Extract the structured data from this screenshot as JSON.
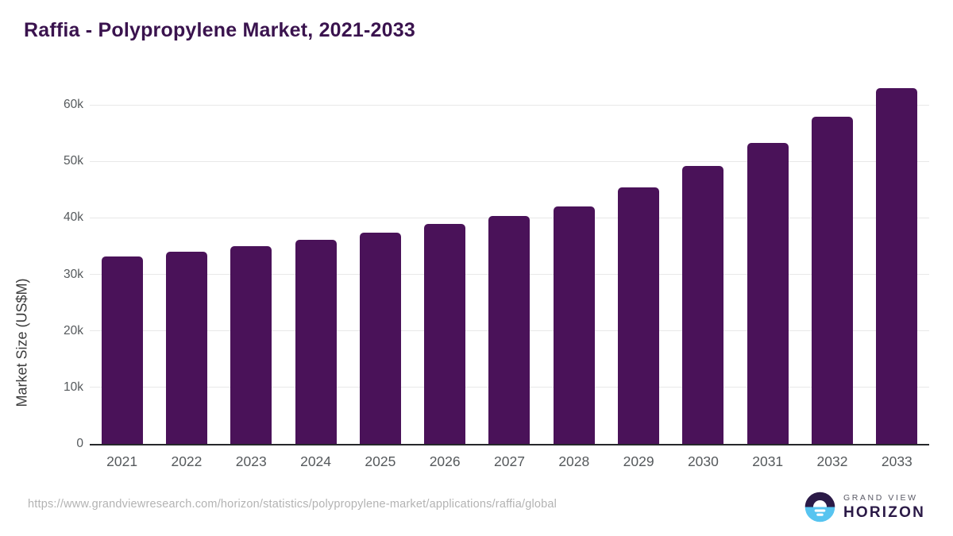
{
  "header": {
    "title": "Raffia - Polypropylene Market, 2021-2033"
  },
  "chart_data": {
    "type": "bar",
    "title": "Raffia - Polypropylene Market, 2021-2033",
    "xlabel": "",
    "ylabel": "Market Size (US$M)",
    "categories": [
      "2021",
      "2022",
      "2023",
      "2024",
      "2025",
      "2026",
      "2027",
      "2028",
      "2029",
      "2030",
      "2031",
      "2032",
      "2033"
    ],
    "values": [
      33150,
      34050,
      35050,
      36150,
      37450,
      38900,
      40400,
      42050,
      45400,
      49200,
      53250,
      57950,
      62900
    ],
    "ylim": [
      0,
      64500
    ],
    "yticks": {
      "values": [
        0,
        10000,
        20000,
        30000,
        40000,
        50000,
        60000
      ],
      "labels": [
        "0",
        "10k",
        "20k",
        "30k",
        "40k",
        "50k",
        "60k"
      ]
    },
    "grid": true,
    "legend": false,
    "bar_color": "#4a1259"
  },
  "footer": {
    "source_url": "https://www.grandviewresearch.com/horizon/statistics/polypropylene-market/applications/raffia/global",
    "logo": {
      "line1": "GRAND VIEW",
      "line2": "HORIZON"
    }
  },
  "colors": {
    "title": "#3a134e",
    "axis_line": "#26282b",
    "tick_text": "#55595c",
    "gridline": "#e8e8e8",
    "url_text": "#b3b3b3",
    "logo_dark": "#2b1a47",
    "logo_blue": "#57c4f0",
    "logo_gray": "#5a5a66"
  }
}
